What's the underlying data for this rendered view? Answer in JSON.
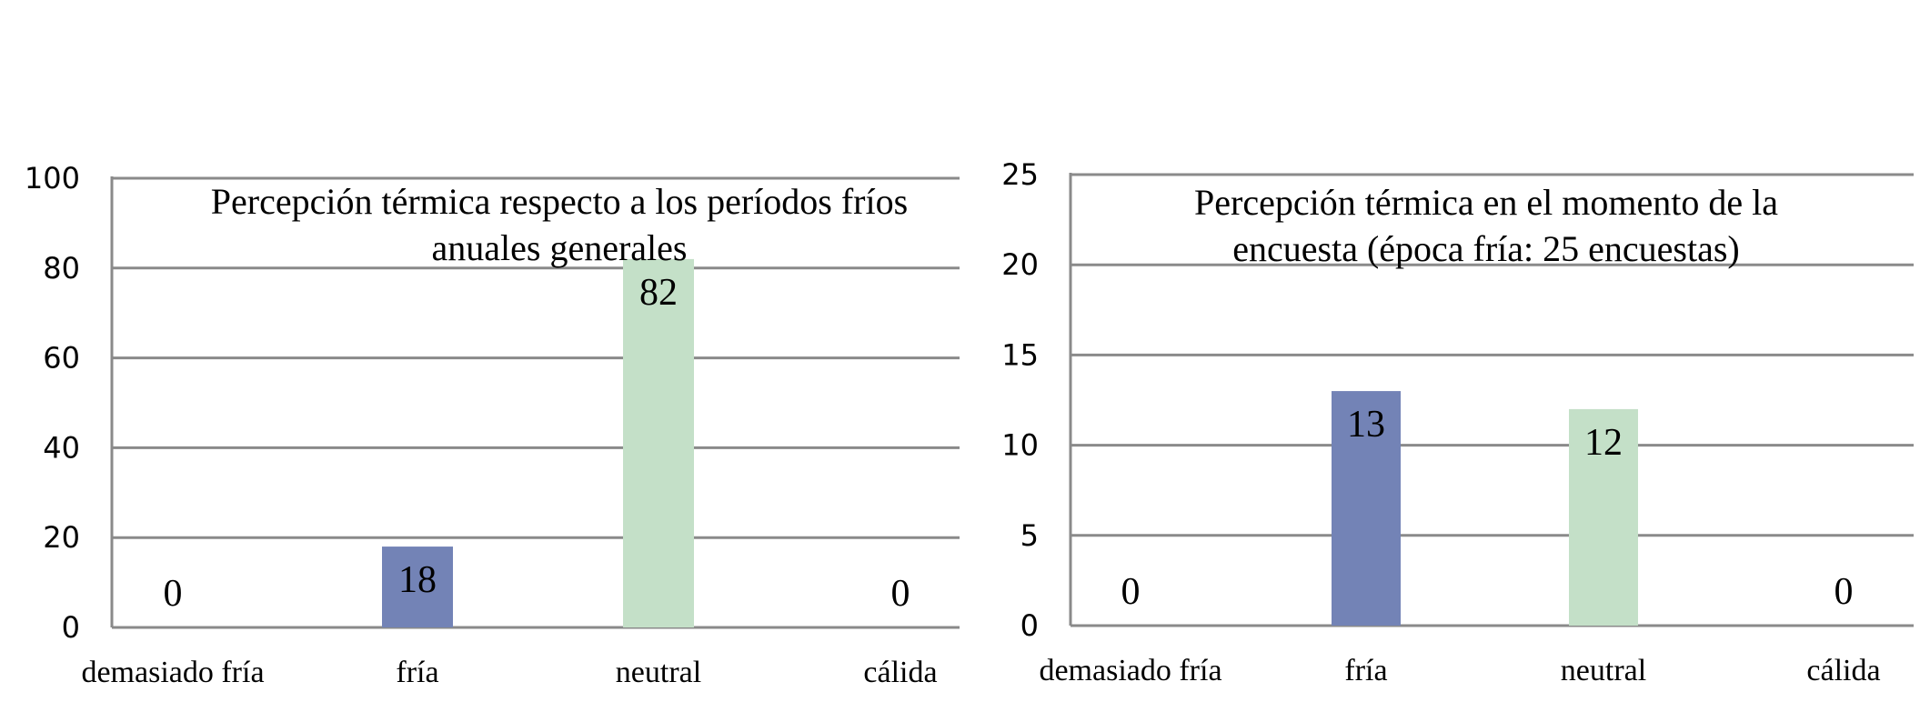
{
  "chart_data": [
    {
      "type": "bar",
      "title_lines": [
        "Percepción térmica respecto a los períodos fríos",
        "anuales generales"
      ],
      "categories": [
        "demasiado fría",
        "fría",
        "neutral",
        "cálida"
      ],
      "values": [
        0,
        18,
        82,
        0
      ],
      "data_labels": [
        "0",
        "18",
        "82",
        "0"
      ],
      "bar_colors": [
        "#7383b6",
        "#7383b6",
        "#c4e0c8",
        "#7383b6"
      ],
      "ylim": [
        0,
        100
      ],
      "yticks": [
        "0",
        "20",
        "40",
        "60",
        "80",
        "100"
      ],
      "grid": true,
      "legend": "none"
    },
    {
      "type": "bar",
      "title_lines": [
        "Percepción térmica en el momento de la",
        "encuesta (época fría: 25 encuestas)"
      ],
      "categories": [
        "demasiado fría",
        "fría",
        "neutral",
        "cálida"
      ],
      "values": [
        0,
        13,
        12,
        0
      ],
      "data_labels": [
        "0",
        "13",
        "12",
        "0"
      ],
      "bar_colors": [
        "#7383b6",
        "#7383b6",
        "#c4e0c8",
        "#7383b6"
      ],
      "ylim": [
        0,
        25
      ],
      "yticks": [
        "0",
        "5",
        "10",
        "15",
        "20",
        "25"
      ],
      "grid": true,
      "legend": "none"
    }
  ]
}
